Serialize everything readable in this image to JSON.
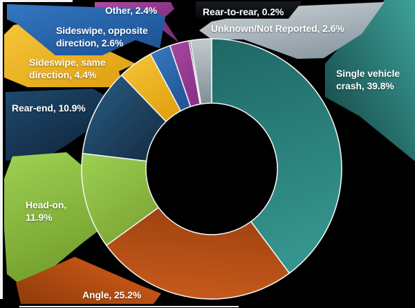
{
  "page": {
    "background": "#000000",
    "frame_color": "#f2f3f3"
  },
  "chart_data": {
    "type": "pie",
    "subtype": "donut",
    "title": "",
    "unit": "%",
    "legend_position": "callout-labels",
    "direction": "clockwise",
    "start_angle_deg": 0,
    "donut_hole_ratio": 0.505,
    "slice_border_color": "#f1f1f1",
    "ids": [
      "single_vehicle",
      "angle",
      "head_on",
      "rear_end",
      "sideswipe_same",
      "sideswipe_opposite",
      "other",
      "rear_to_rear",
      "unknown"
    ],
    "categories": [
      "Single vehicle crash",
      "Angle",
      "Head-on",
      "Rear-end",
      "Sideswipe, same direction",
      "Sideswipe, opposite direction",
      "Other",
      "Rear-to-rear",
      "Unknown/Not Reported"
    ],
    "values": [
      39.8,
      25.2,
      11.9,
      10.9,
      4.4,
      2.6,
      2.4,
      0.2,
      2.6
    ],
    "labels": {
      "single_vehicle": "Single vehicle crash, 39.8%",
      "angle": "Angle, 25.2%",
      "head_on": "Head-on, 11.9%",
      "rear_end": "Rear-end, 10.9%",
      "sideswipe_same": "Sideswipe, same direction, 4.4%",
      "sideswipe_opposite": "Sideswipe, opposite direction, 2.6%",
      "other": "Other, 2.4%",
      "rear_to_rear": "Rear-to-rear, 0.2%",
      "unknown": "Unknown/Not Reported, 2.6%"
    },
    "colors": {
      "single_vehicle": {
        "slice": [
          "#1e6765",
          "#35948d"
        ],
        "callout": [
          "#3ea19a",
          "#11403f"
        ]
      },
      "angle": {
        "slice": [
          "#a04310",
          "#ca5c1d"
        ],
        "callout": [
          "#d05c18",
          "#8f3a0b"
        ]
      },
      "head_on": {
        "slice": [
          "#9dd053",
          "#7ca633"
        ],
        "callout": [
          "#9ed154",
          "#74a02c"
        ]
      },
      "rear_end": {
        "slice": [
          "#2a5f86",
          "#13293f"
        ],
        "callout": [
          "#1f4a70",
          "#0d1f32"
        ]
      },
      "sideswipe_same": {
        "slice": [
          "#f6c637",
          "#e3a312"
        ],
        "callout": [
          "#f7c63b",
          "#dd9e10"
        ]
      },
      "sideswipe_opposite": {
        "slice": [
          "#3a78bf",
          "#22589a"
        ],
        "callout": [
          "#3377c2",
          "#1c4f90"
        ]
      },
      "other": {
        "slice": [
          "#a747a1",
          "#8a3387"
        ],
        "callout": [
          "#ab4ba5",
          "#7f2d7c"
        ]
      },
      "rear_to_rear": {
        "slice": [
          "#22262d",
          "#08090b"
        ],
        "callout": [
          "#191d23",
          "#050608"
        ]
      },
      "unknown": {
        "slice": [
          "#c3cacd",
          "#7f8e97"
        ],
        "callout": [
          "#c9d0d3",
          "#8695a0"
        ]
      }
    },
    "text_color": "#ffffff"
  }
}
